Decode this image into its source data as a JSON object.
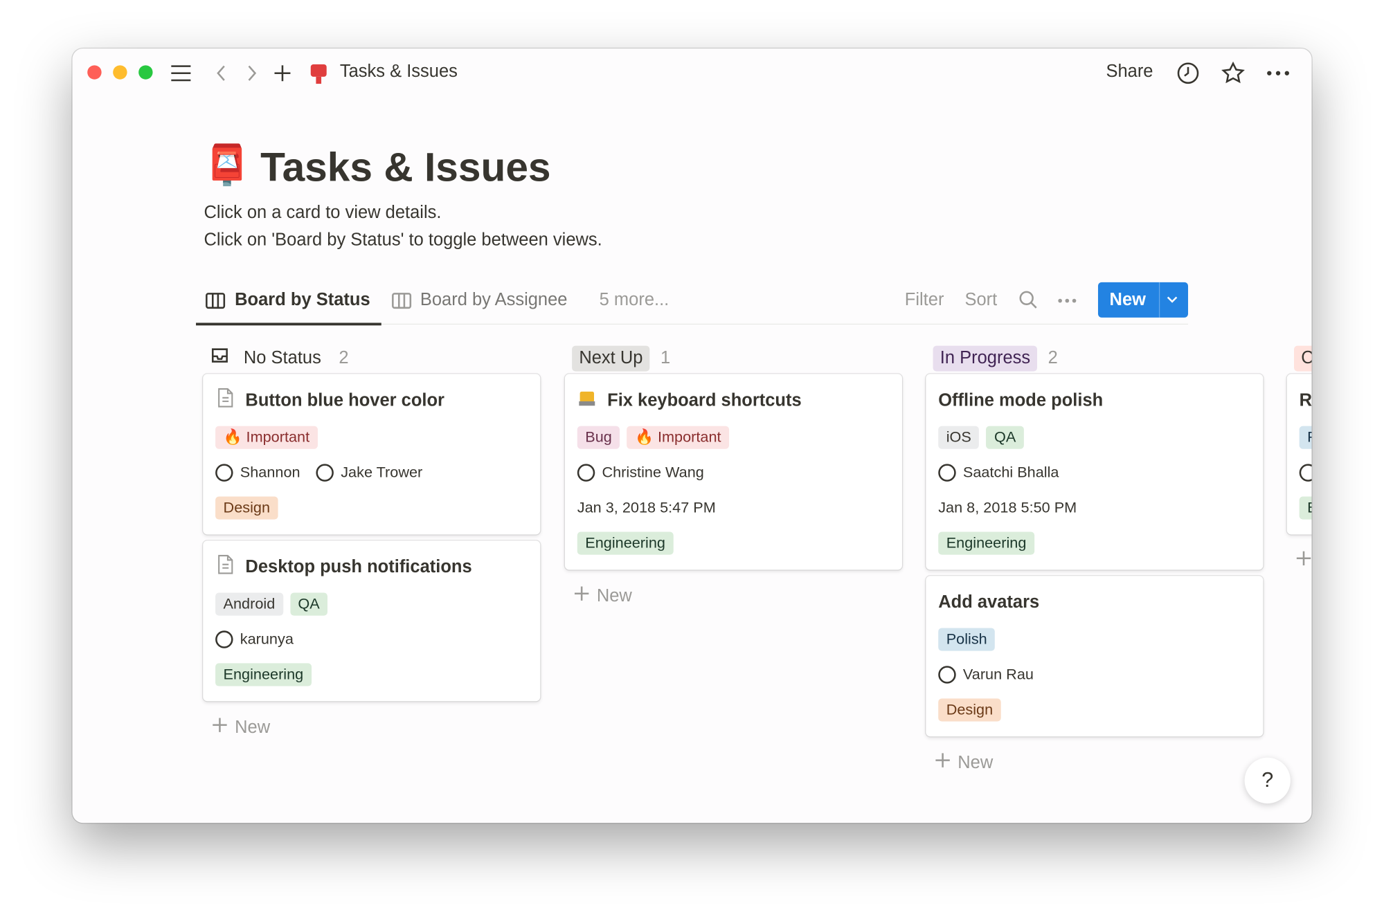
{
  "window": {
    "title": "Tasks & Issues",
    "share": "Share"
  },
  "page": {
    "icon": "📮",
    "title": "Tasks & Issues",
    "description": [
      "Click on a card to view details.",
      "Click on 'Board by Status' to toggle between views."
    ]
  },
  "views": {
    "tabs": [
      "Board by Status",
      "Board by Assignee"
    ],
    "more": "5 more...",
    "tools": [
      "Filter",
      "Sort"
    ],
    "new_button": "New"
  },
  "columns": [
    {
      "name": "No Status",
      "count": "2",
      "style": "plain",
      "add": "New",
      "cards": [
        {
          "title": "Button blue hover color",
          "tags": [
            {
              "text": "🔥 Important",
              "color": "red"
            }
          ],
          "people": [
            "Shannon",
            "Jake Trower"
          ],
          "team": {
            "text": "Design",
            "color": "orange"
          }
        },
        {
          "title": "Desktop push notifications",
          "tags": [
            {
              "text": "Android",
              "color": "gray"
            },
            {
              "text": "QA",
              "color": "green"
            }
          ],
          "people": [
            "karunya"
          ],
          "team": {
            "text": "Engineering",
            "color": "green"
          }
        }
      ]
    },
    {
      "name": "Next Up",
      "count": "1",
      "style": "gray",
      "add": "New",
      "cards": [
        {
          "title": "Fix keyboard shortcuts",
          "tags": [
            {
              "text": "Bug",
              "color": "pink"
            },
            {
              "text": "🔥 Important",
              "color": "red"
            }
          ],
          "people": [
            "Christine Wang"
          ],
          "date": "Jan 3, 2018 5:47 PM",
          "team": {
            "text": "Engineering",
            "color": "green"
          }
        }
      ]
    },
    {
      "name": "In Progress",
      "count": "2",
      "style": "purple",
      "add": "New",
      "cards": [
        {
          "title": "Offline mode polish",
          "tags": [
            {
              "text": "iOS",
              "color": "gray"
            },
            {
              "text": "QA",
              "color": "green"
            }
          ],
          "people": [
            "Saatchi Bhalla"
          ],
          "date": "Jan 8, 2018 5:50 PM",
          "team": {
            "text": "Engineering",
            "color": "green"
          }
        },
        {
          "title": "Add avatars",
          "tags": [
            {
              "text": "Polish",
              "color": "blue"
            }
          ],
          "people": [
            "Varun Rau"
          ],
          "team": {
            "text": "Design",
            "color": "orange"
          }
        }
      ]
    },
    {
      "name": "C",
      "style": "red",
      "cards": [
        {
          "title": "R",
          "tags": [
            {
              "text": "P",
              "color": "blue"
            }
          ],
          "people": [
            ""
          ],
          "team": {
            "text": "E",
            "color": "green"
          }
        }
      ]
    }
  ],
  "help": "?"
}
